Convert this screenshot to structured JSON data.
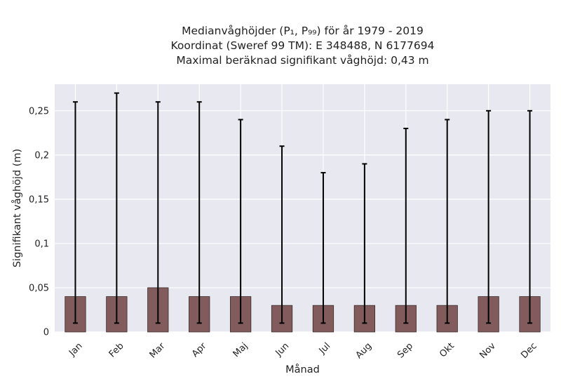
{
  "chart_data": {
    "type": "bar",
    "title_lines": [
      "Medianvåghöjder (P₁, P₉₉) för år 1979 - 2019",
      "Koordinat (Sweref 99 TM): E 348488, N 6177694",
      "Maximal beräknad signifikant våghöjd: 0,43 m"
    ],
    "xlabel": "Månad",
    "ylabel": "Signifikant våghöjd (m)",
    "categories": [
      "Jan",
      "Feb",
      "Mar",
      "Apr",
      "Maj",
      "Jun",
      "Jul",
      "Aug",
      "Sep",
      "Okt",
      "Nov",
      "Dec"
    ],
    "values": [
      0.04,
      0.04,
      0.05,
      0.04,
      0.04,
      0.03,
      0.03,
      0.03,
      0.03,
      0.03,
      0.04,
      0.04
    ],
    "p1": [
      0.01,
      0.01,
      0.01,
      0.01,
      0.01,
      0.01,
      0.01,
      0.01,
      0.01,
      0.01,
      0.01,
      0.01
    ],
    "p99": [
      0.26,
      0.27,
      0.26,
      0.26,
      0.24,
      0.21,
      0.18,
      0.19,
      0.23,
      0.24,
      0.25,
      0.25
    ],
    "ylim": [
      0,
      0.28
    ],
    "yticks": [
      0,
      0.05,
      0.1,
      0.15,
      0.2,
      0.25
    ],
    "ytick_labels": [
      "0",
      "0,05",
      "0,1",
      "0,15",
      "0,2",
      "0,25"
    ],
    "grid": true,
    "colors": {
      "bar": "#825c5c",
      "bar_edge": "#3a2a2a",
      "error": "#000000",
      "plot_bg": "#e8e8f0",
      "grid": "#ffffff"
    }
  }
}
